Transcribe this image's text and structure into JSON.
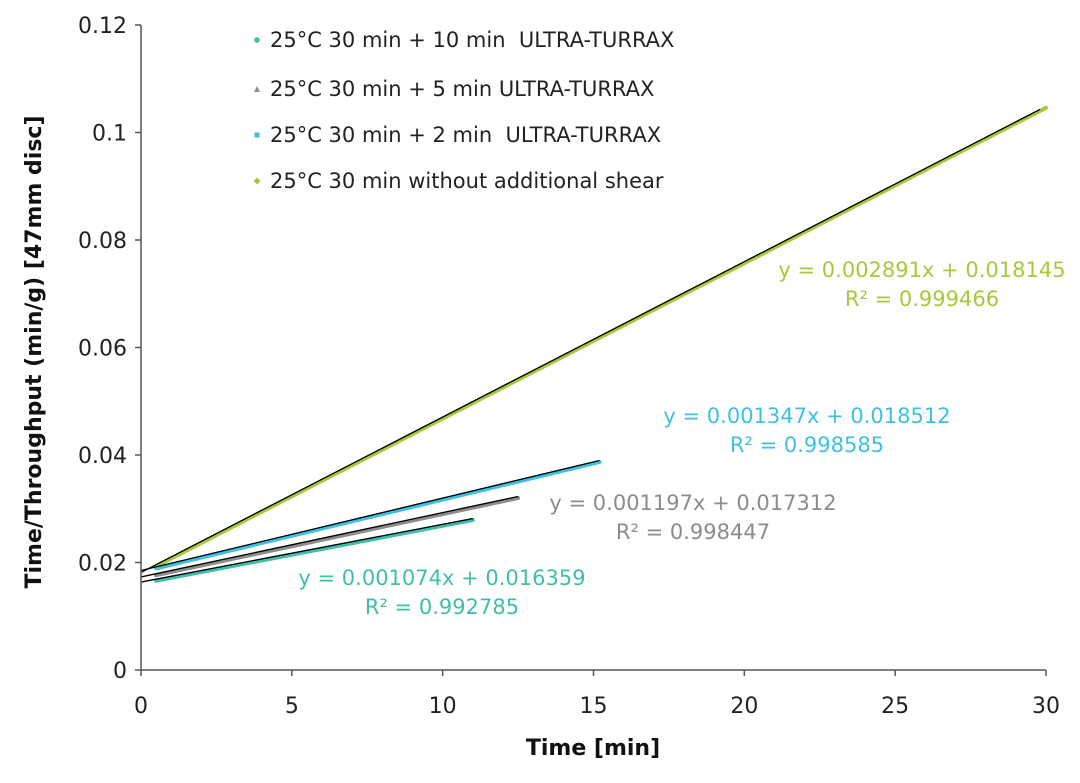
{
  "chart_data": {
    "type": "scatter",
    "xlabel": "Time [min]",
    "ylabel": "Time/Throughput (min/g) [47mm disc]",
    "xlim": [
      0,
      30
    ],
    "ylim": [
      0,
      0.12
    ],
    "x_ticks": [
      "0",
      "5",
      "10",
      "15",
      "20",
      "25",
      "30"
    ],
    "y_ticks": [
      "0",
      "0.02",
      "0.04",
      "0.06",
      "0.08",
      "0.1",
      "0.12"
    ],
    "legend_position": "top-left",
    "grid": false,
    "trendline_color": "#000000",
    "series": [
      {
        "name": "25°C 30 min + 10 min  ULTRA-TURRAX",
        "color": "#3fbfa8",
        "marker": "dot",
        "x_start": 0.5,
        "x_end": 11.0,
        "trend_x_start": 0.0,
        "trend_x_end": 11.0,
        "slope": 0.001074,
        "intercept": 0.016359,
        "equation": "y = 0.001074x + 0.016359",
        "r2": "R² = 0.992785"
      },
      {
        "name": "25°C 30 min + 5 min ULTRA-TURRAX",
        "color": "#8c8c8c",
        "marker": "triangle",
        "x_start": 0.5,
        "x_end": 12.5,
        "trend_x_start": 0.0,
        "trend_x_end": 12.5,
        "slope": 0.001197,
        "intercept": 0.017312,
        "equation": "y = 0.001197x + 0.017312",
        "r2": "R² = 0.998447"
      },
      {
        "name": "25°C 30 min + 2 min  ULTRA-TURRAX",
        "color": "#3ec1e0",
        "marker": "square",
        "x_start": 0.5,
        "x_end": 15.2,
        "trend_x_start": 0.0,
        "trend_x_end": 15.2,
        "slope": 0.001347,
        "intercept": 0.018512,
        "equation": "y = 0.001347x + 0.018512",
        "r2": "R² = 0.998585"
      },
      {
        "name": "25°C 30 min without additional shear",
        "color": "#a6c93c",
        "marker": "diamond",
        "x_start": 0.5,
        "x_end": 30.0,
        "trend_x_start": 0.0,
        "trend_x_end": 29.8,
        "slope": 0.002891,
        "intercept": 0.018145,
        "equation": "y = 0.002891x + 0.018145",
        "r2": "R² = 0.999466"
      }
    ]
  }
}
